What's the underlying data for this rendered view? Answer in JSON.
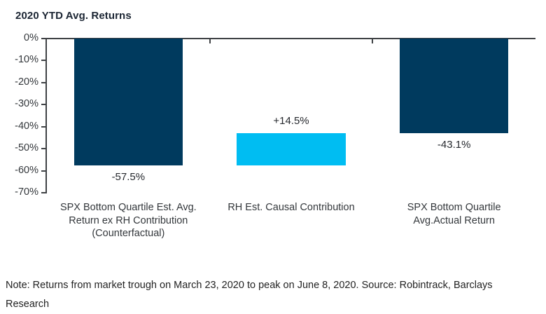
{
  "chart_data": {
    "type": "bar",
    "title": "2020 YTD Avg. Returns",
    "xlabel": "",
    "ylabel": "",
    "ylim": [
      0,
      -70
    ],
    "grid": false,
    "legend": null,
    "y_tick_labels": [
      "0%",
      "-10%",
      "-20%",
      "-30%",
      "-40%",
      "-50%",
      "-60%",
      "-70%"
    ],
    "categories": [
      "SPX Bottom Quartile Est. Avg. Return ex RH Contribution (Counterfactual)",
      "RH Est. Causal Contribution",
      "SPX Bottom Quartile Avg.Actual Return"
    ],
    "bars": [
      {
        "category_lines": [
          "SPX Bottom Quartile Est. Avg.",
          "Return ex RH Contribution",
          "(Counterfactual)"
        ],
        "start": 0,
        "end": -57.5,
        "value_label": "-57.5%",
        "value_label_position": "below",
        "color_name": "navy"
      },
      {
        "category_lines": [
          "RH Est. Causal Contribution"
        ],
        "start": -57.5,
        "end": -43.1,
        "value_label": "+14.5%",
        "value_label_position": "above",
        "color_name": "cyan"
      },
      {
        "category_lines": [
          "SPX Bottom Quartile",
          "Avg.Actual Return"
        ],
        "start": 0,
        "end": -43.1,
        "value_label": "-43.1%",
        "value_label_position": "below",
        "color_name": "navy"
      }
    ]
  },
  "colors": {
    "navy": "#003a5e",
    "cyan": "#00bdf2",
    "axis": "#3f4245",
    "tick_text": "#33373b",
    "title_text": "#1b2533",
    "note_text": "#222222"
  },
  "note": {
    "line1": "Note: Returns from market trough on March 23, 2020 to peak on June 8, 2020. Source: Robintrack, Barclays",
    "line2": "Research"
  }
}
